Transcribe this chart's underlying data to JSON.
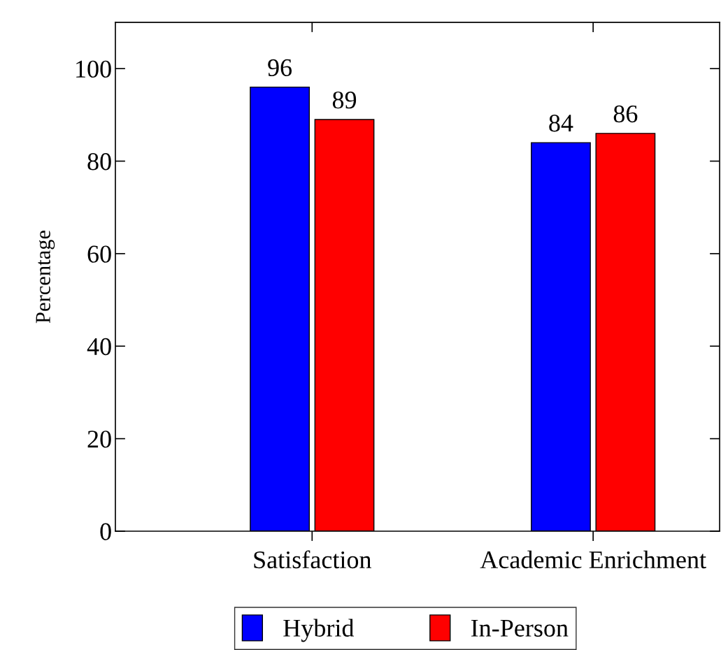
{
  "chart_data": {
    "type": "bar",
    "ylabel": "Percentage",
    "categories": [
      "Satisfaction",
      "Academic Enrichment"
    ],
    "series": [
      {
        "name": "Hybrid",
        "color": "#0000ff",
        "values": [
          96,
          84
        ]
      },
      {
        "name": "In-Person",
        "color": "#ff0000",
        "values": [
          89,
          86
        ]
      }
    ],
    "ylim": [
      0,
      110
    ],
    "yticks": [
      0,
      20,
      40,
      60,
      80,
      100
    ],
    "grid": false,
    "legend": "bottom",
    "data_labels": true
  }
}
